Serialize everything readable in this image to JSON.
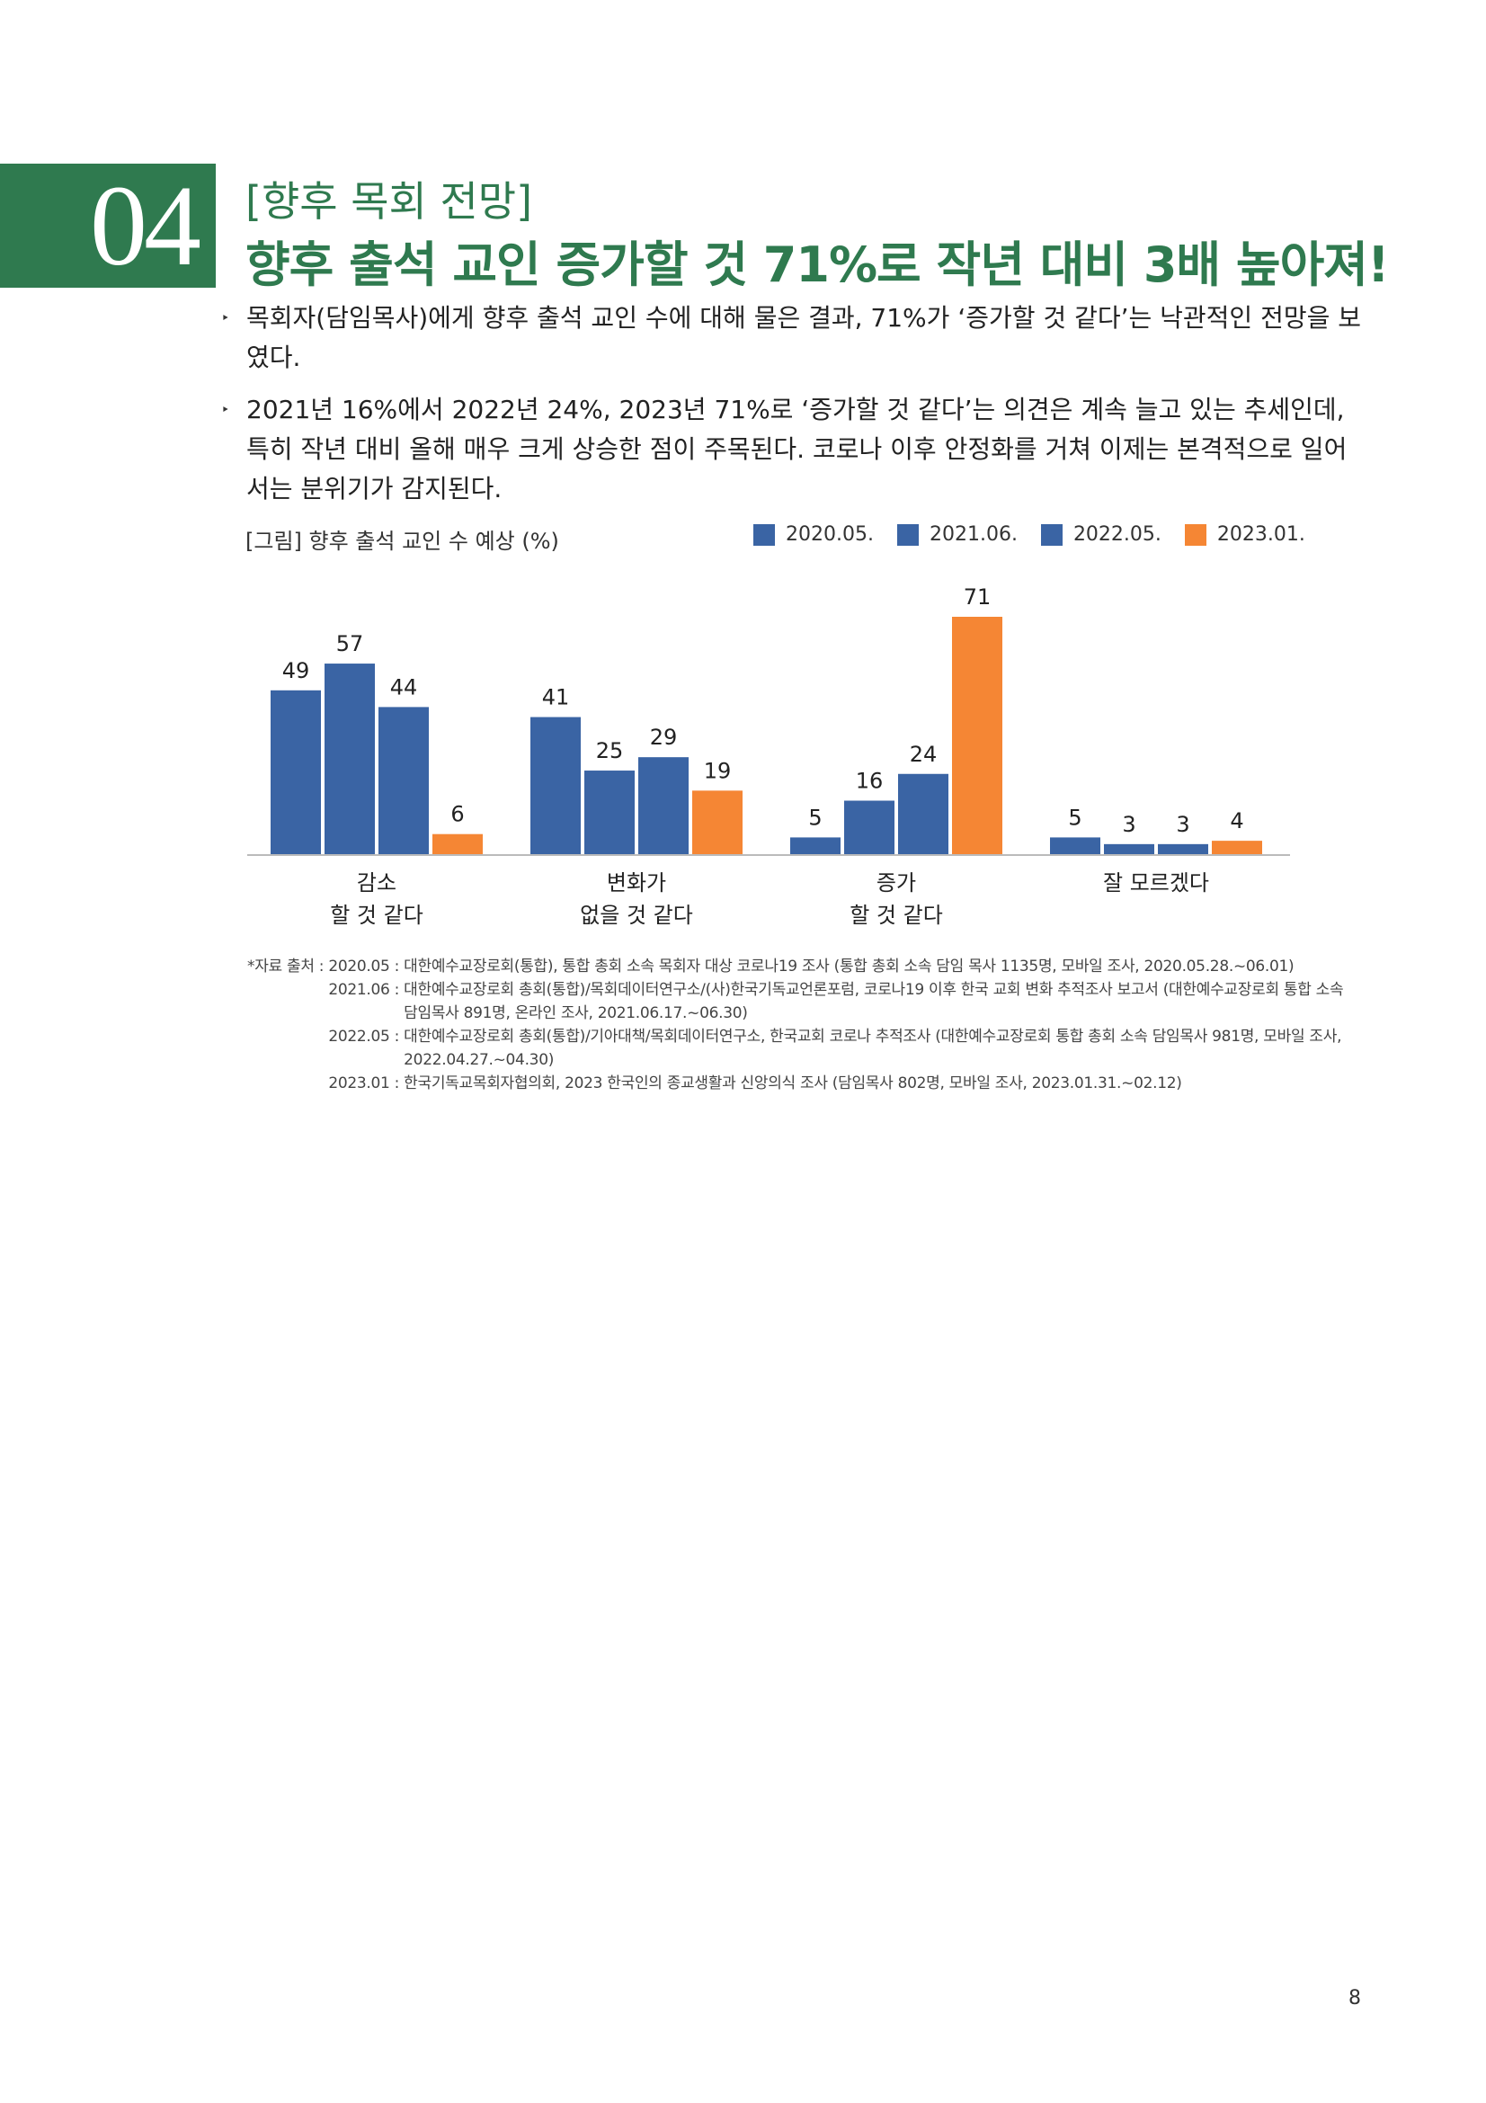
{
  "section": {
    "number": "04",
    "subtitle": "[향후 목회 전망]",
    "title": "향후 출석 교인 증가할 것 71%로 작년 대비 3배 높아져!"
  },
  "bullets": [
    "목회자(담임목사)에게 향후 출석 교인 수에 대해 물은 결과, 71%가 ‘증가할 것 같다’는 낙관적인 전망을 보였다.",
    "2021년 16%에서 2022년 24%, 2023년 71%로 ‘증가할 것 같다’는 의견은 계속 늘고 있는 추세인데, 특히 작년 대비 올해 매우 크게 상승한 점이 주목된다. 코로나 이후 안정화를 거쳐 이제는 본격적으로 일어서는 분위기가 감지된다."
  ],
  "bullet_marker": "‣",
  "chart_data": {
    "type": "bar",
    "title": "[그림] 향후 출석 교인 수 예상 (%)",
    "categories": [
      [
        "감소",
        "할 것 같다"
      ],
      [
        "변화가",
        "없을 것 같다"
      ],
      [
        "증가",
        "할 것 같다"
      ],
      [
        "잘 모르겠다"
      ]
    ],
    "series": [
      {
        "name": "2020.05.",
        "color": "#3a64a4",
        "values": [
          49,
          41,
          5,
          5
        ]
      },
      {
        "name": "2021.06.",
        "color": "#3a64a4",
        "values": [
          57,
          25,
          16,
          3
        ]
      },
      {
        "name": "2022.05.",
        "color": "#3a64a4",
        "values": [
          44,
          29,
          24,
          3
        ]
      },
      {
        "name": "2023.01.",
        "color": "#f58634",
        "values": [
          6,
          19,
          71,
          4
        ]
      }
    ],
    "ylim": [
      0,
      71
    ],
    "grid": false,
    "legend": "top-right"
  },
  "notes": {
    "lead": "*자료 출처 :",
    "items": [
      {
        "date": "2020.05 :",
        "text": "대한예수교장로회(통합), 통합 총회 소속 목회자 대상 코로나19 조사 (통합 총회 소속 담임 목사 1135명, 모바일 조사, 2020.05.28.~06.01)"
      },
      {
        "date": "2021.06 :",
        "text": "대한예수교장로회 총회(통합)/목회데이터연구소/(사)한국기독교언론포럼, 코로나19 이후 한국 교회 변화 추적조사 보고서 (대한예수교장로회 통합 소속 담임목사 891명, 온라인 조사, 2021.06.17.~06.30)"
      },
      {
        "date": "2022.05 :",
        "text": "대한예수교장로회 총회(통합)/기아대책/목회데이터연구소, 한국교회 코로나 추적조사 (대한예수교장로회 통합 총회 소속 담임목사 981명, 모바일 조사, 2022.04.27.~04.30)"
      },
      {
        "date": "2023.01 :",
        "text": "한국기독교목회자협의회, 2023 한국인의 종교생활과 신앙의식 조사 (담임목사 802명, 모바일 조사, 2023.01.31.~02.12)"
      }
    ]
  },
  "page_number": "8"
}
